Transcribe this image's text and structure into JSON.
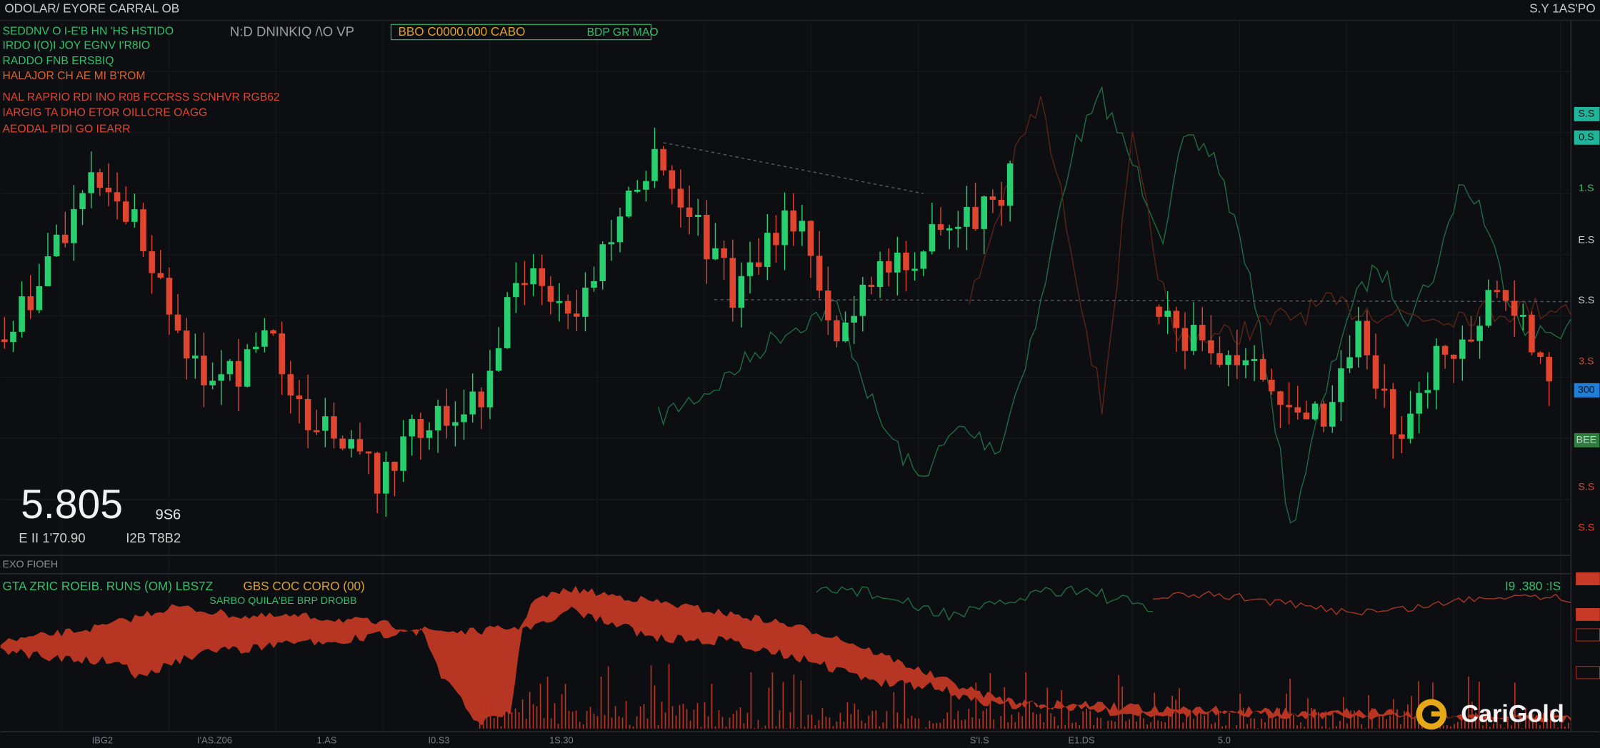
{
  "header": {
    "symbol": "ODOLAR/ EYORE CARRAL OB",
    "title": "N:D DNINKIQ /\\O VP",
    "price_box": "BBO C0000.000 CABO",
    "mode": "BDP GR MAO",
    "right": "S.Y 1AS'PO"
  },
  "info_lines": [
    "SEDDNV O I-E'B HN 'HS HSTIDO",
    "IRDO I(O)I JOY EGNV I'R8IO",
    "RADDO FNB ERSBIQ",
    "HALAJOR CH AE MI B'ROM",
    "NAL RAPRIO RDI INO R0B FCCRSS SCNHVR RGB62",
    "IARGIG TA DHO ETOR OILLCRE OAGG",
    "AEODAL PIDI GO IEARR"
  ],
  "price": {
    "value": "5.805",
    "unit": "9S6",
    "sub_left": "E II 1'70.90",
    "sub_right": "I2B T8B2"
  },
  "indicator": {
    "label": "EXO FIOEH",
    "title": "GTA ZRIC ROEIB. RUNS (OM) LBS7Z",
    "params": "GBS COC CORO (00)",
    "subtitle": "SARBO QUILA'BE BRP DROBB",
    "readout": "I9 .380 :IS"
  },
  "axis_labels": [
    "S.S",
    "0.S",
    "1.S",
    "E.S",
    "S.S",
    "3.S",
    "300",
    "BEE",
    "S.S",
    "S.S"
  ],
  "time_labels": [
    "IBG2",
    "I'AS.Z06",
    "1.AS",
    "I0.S3",
    "1S.30",
    "S'I.S",
    "E1.DS",
    "5.0"
  ],
  "logo": "CariGold"
}
